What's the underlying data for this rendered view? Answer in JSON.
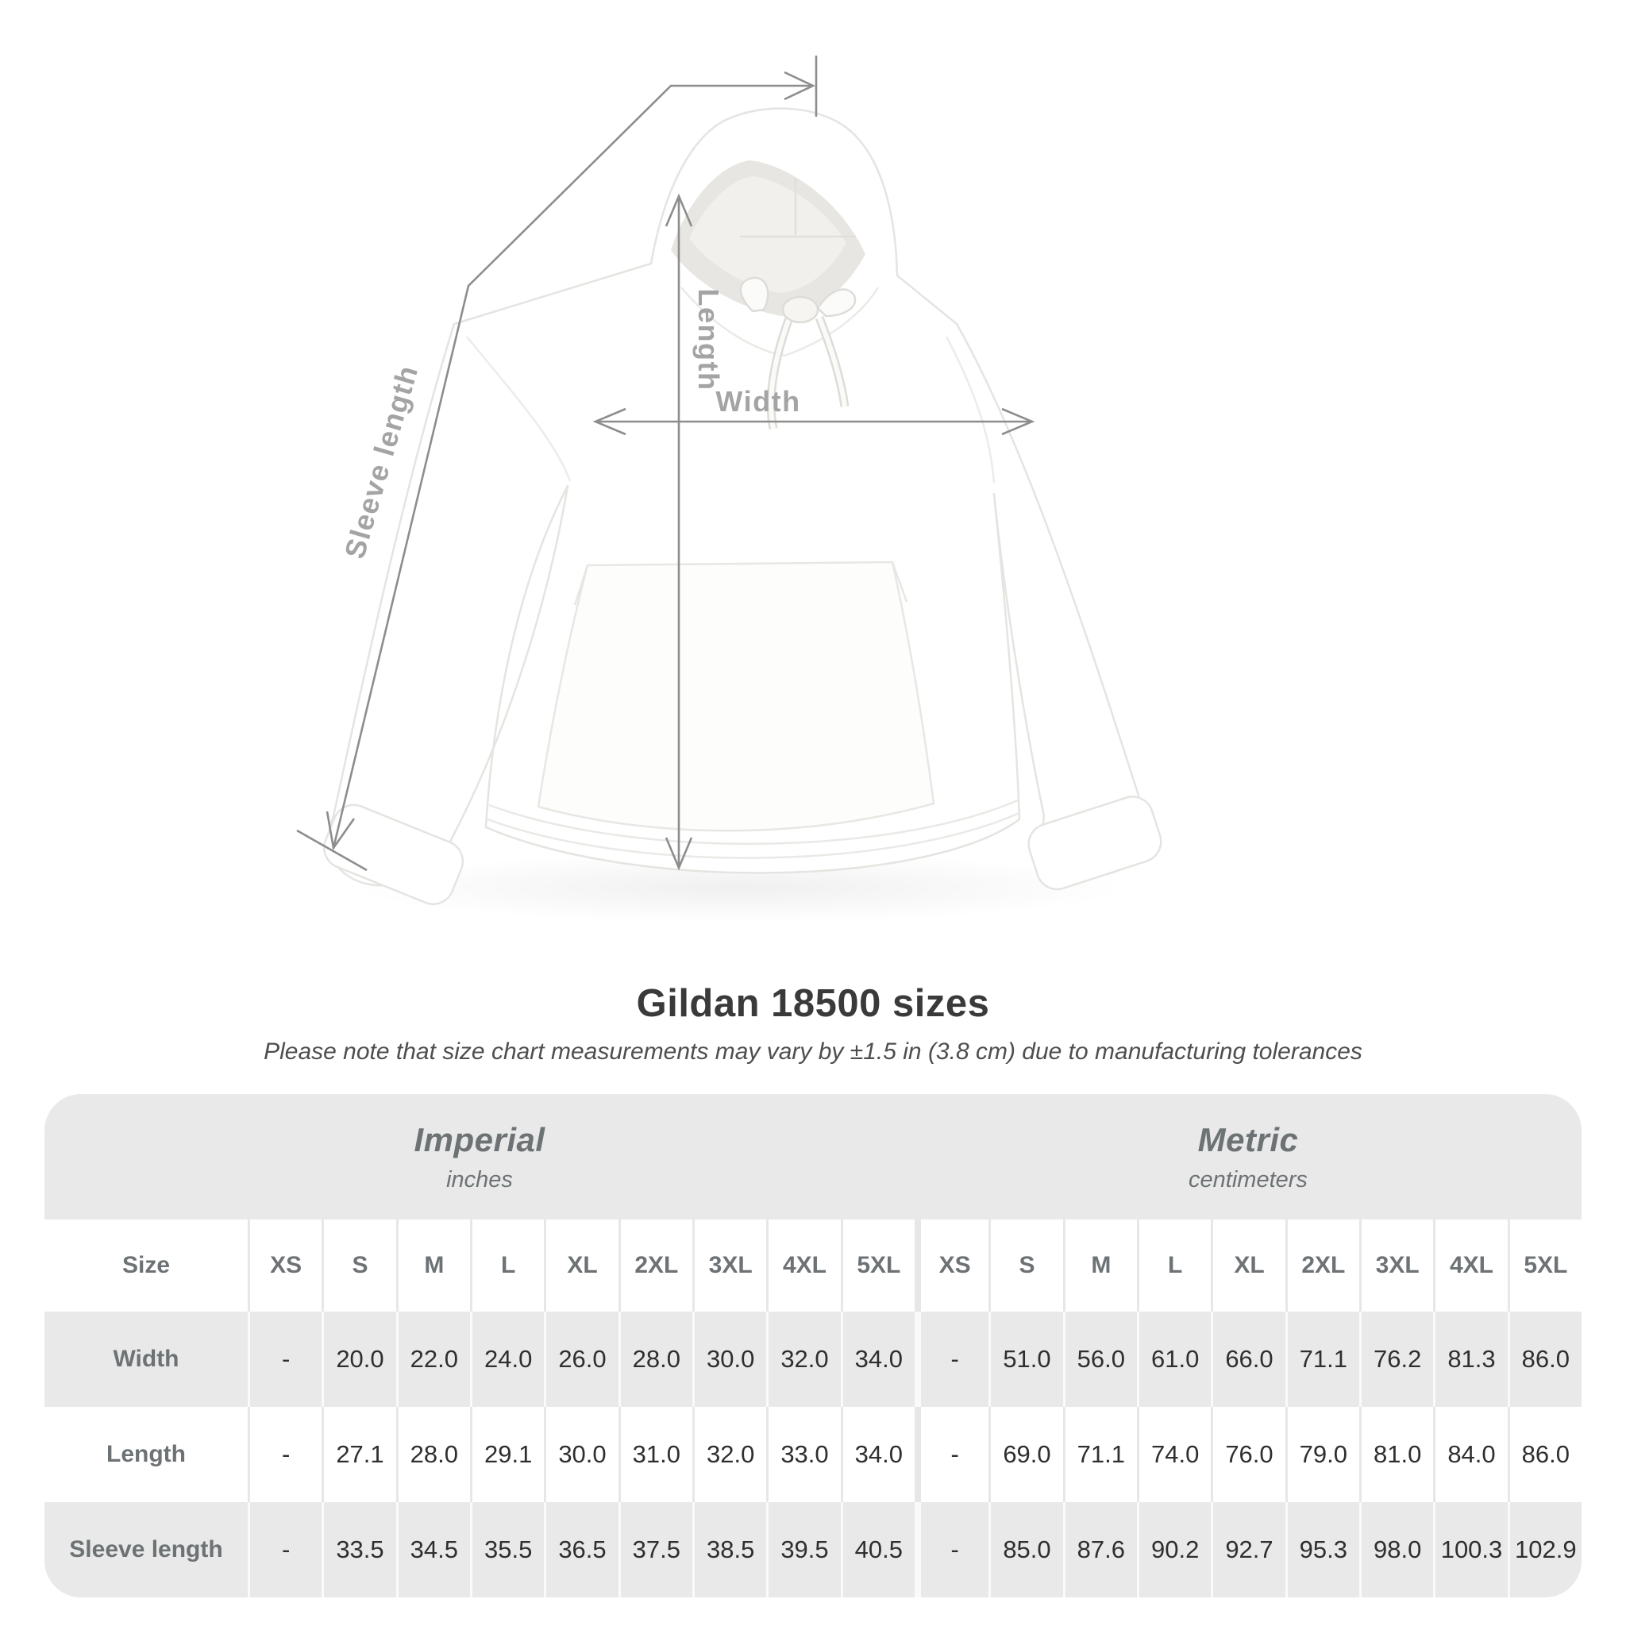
{
  "title": "Gildan 18500 sizes",
  "subtitle": "Please note that size chart measurements may vary by ±1.5 in (3.8 cm) due to manufacturing tolerances",
  "diagram": {
    "sleeve_label": "Sleeve length",
    "length_label": "Length",
    "width_label": "Width",
    "line_color": "#8d8d8d",
    "label_color": "#a4a4a4"
  },
  "chart_data": {
    "type": "table",
    "title": "Gildan 18500 sizes",
    "corner_label": "Size",
    "sections": [
      {
        "name": "Imperial",
        "unit": "inches"
      },
      {
        "name": "Metric",
        "unit": "centimeters"
      }
    ],
    "sizes": [
      "XS",
      "S",
      "M",
      "L",
      "XL",
      "2XL",
      "3XL",
      "4XL",
      "5XL"
    ],
    "rows": [
      {
        "label": "Width",
        "imperial": [
          "-",
          "20.0",
          "22.0",
          "24.0",
          "26.0",
          "28.0",
          "30.0",
          "32.0",
          "34.0"
        ],
        "metric": [
          "-",
          "51.0",
          "56.0",
          "61.0",
          "66.0",
          "71.1",
          "76.2",
          "81.3",
          "86.0"
        ]
      },
      {
        "label": "Length",
        "imperial": [
          "-",
          "27.1",
          "28.0",
          "29.1",
          "30.0",
          "31.0",
          "32.0",
          "33.0",
          "34.0"
        ],
        "metric": [
          "-",
          "69.0",
          "71.1",
          "74.0",
          "76.0",
          "79.0",
          "81.0",
          "84.0",
          "86.0"
        ]
      },
      {
        "label": "Sleeve length",
        "imperial": [
          "-",
          "33.5",
          "34.5",
          "35.5",
          "36.5",
          "37.5",
          "38.5",
          "39.5",
          "40.5"
        ],
        "metric": [
          "-",
          "85.0",
          "87.6",
          "90.2",
          "92.7",
          "95.3",
          "98.0",
          "100.3",
          "102.9"
        ]
      }
    ],
    "colors": {
      "band_bg": "#e9e9e9",
      "alt_row_bg": "#e9e9e9",
      "header_text": "#6d7275",
      "value_text": "#2f2f2f"
    }
  }
}
